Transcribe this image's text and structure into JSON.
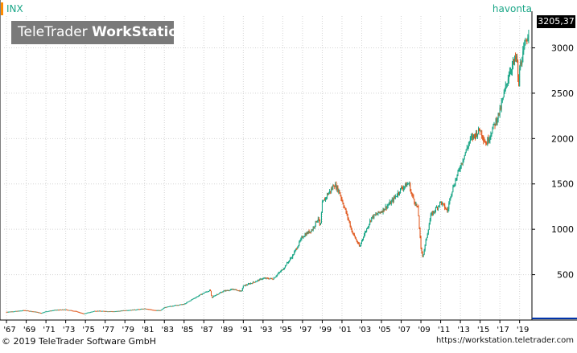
{
  "symbol": "INX",
  "branding": {
    "logo_regular": "TeleTrader ",
    "logo_bold": "WorkStation"
  },
  "label_right": "havonta",
  "last_value_tag": "3205,37",
  "footer": {
    "copyright": "© 2019 TeleTrader Software GmbH",
    "url": "https://workstation.teletrader.com"
  },
  "colors": {
    "up": "#1aa687",
    "down": "#e0561b",
    "grid": "#d4d4d4",
    "accent": "#ff8c00",
    "axis": "#000000",
    "logo_bg": "#7a7a7a"
  },
  "chart_data": {
    "type": "candlestick",
    "interval": "monthly",
    "y_axis": {
      "ticks": [
        500,
        1000,
        1500,
        2000,
        2500,
        3000
      ],
      "ylim": [
        0,
        3350
      ],
      "side": "right",
      "grid": true
    },
    "x_axis": {
      "ticks": [
        "'67",
        "'69",
        "'71",
        "'73",
        "'75",
        "'77",
        "'79",
        "'81",
        "'83",
        "'85",
        "'87",
        "'89",
        "'91",
        "'93",
        "'95",
        "'97",
        "'99",
        "'01",
        "'03",
        "'05",
        "'07",
        "'09",
        "'11",
        "'13",
        "'15",
        "'17",
        "'19"
      ],
      "xlim": [
        1966.75,
        2020.25
      ],
      "grid": true
    },
    "series": [
      {
        "x": [
          1967,
          1968,
          1968.8,
          1970,
          1970.5,
          1971,
          1972,
          1973,
          1974,
          1974.8,
          1975.5,
          1976,
          1977,
          1978,
          1979,
          1980,
          1981,
          1982,
          1982.6,
          1983,
          1984,
          1985,
          1986,
          1987,
          1987.65,
          1987.8,
          1988,
          1989,
          1990,
          1990.8,
          1991,
          1992,
          1993,
          1994,
          1995,
          1996,
          1997,
          1998,
          1998.6,
          1998.8,
          1999,
          1999.5,
          2000,
          2000.2,
          2000.7,
          2001,
          2001.7,
          2002,
          2002.8,
          2003,
          2004,
          2005,
          2006,
          2007,
          2007.8,
          2008,
          2008.7,
          2009,
          2009.2,
          2010,
          2011,
          2011.7,
          2012,
          2013,
          2014,
          2015,
          2015.6,
          2016,
          2017,
          2018,
          2018.7,
          2018.95,
          2019,
          2019.5,
          2019.95
        ],
        "y": [
          90,
          98,
          108,
          90,
          77,
          95,
          112,
          116,
          98,
          70,
          88,
          102,
          98,
          96,
          107,
          115,
          125,
          110,
          105,
          138,
          162,
          175,
          240,
          300,
          330,
          240,
          265,
          320,
          340,
          315,
          375,
          415,
          460,
          455,
          560,
          710,
          920,
          1000,
          1130,
          1010,
          1280,
          1380,
          1450,
          1500,
          1420,
          1320,
          1090,
          980,
          800,
          880,
          1130,
          1200,
          1300,
          1450,
          1510,
          1400,
          1220,
          780,
          700,
          1150,
          1300,
          1200,
          1380,
          1700,
          1990,
          2100,
          1940,
          2040,
          2300,
          2750,
          2900,
          2500,
          2780,
          3000,
          3205.37
        ]
      }
    ]
  }
}
